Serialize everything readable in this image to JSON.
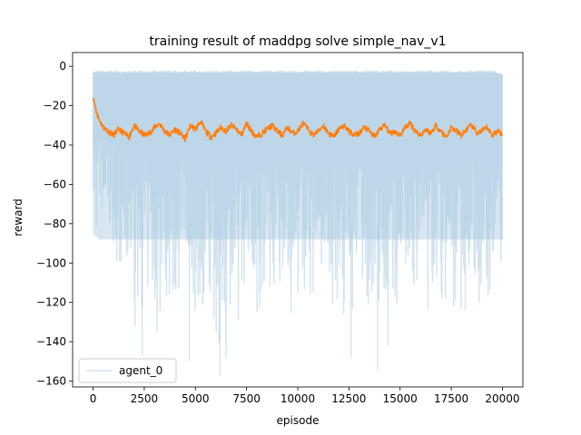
{
  "chart_data": {
    "type": "line",
    "title": "training result of maddpg solve simple_nav_v1",
    "xlabel": "episode",
    "ylabel": "reward",
    "xlim": [
      -1000,
      21000
    ],
    "ylim": [
      -163,
      7
    ],
    "x_ticks": [
      0,
      2500,
      5000,
      7500,
      10000,
      12500,
      15000,
      17500,
      20000
    ],
    "y_ticks": [
      0,
      -20,
      -40,
      -60,
      -80,
      -100,
      -120,
      -140,
      -160
    ],
    "grid": false,
    "legend": {
      "position": "lower-left",
      "entries": [
        "agent_0"
      ]
    },
    "series": [
      {
        "name": "agent_0",
        "style": "raw-episode-reward",
        "color": "#a6c8e0",
        "opacity": 0.5,
        "x_range": [
          0,
          20000
        ],
        "upper_envelope": [
          -2,
          -2,
          -2,
          -2,
          -2,
          -2,
          -2,
          -2,
          -2,
          -2,
          -2,
          -2,
          -2,
          -2,
          -2,
          -2,
          -2,
          -2,
          -2,
          -2,
          -2,
          -2,
          -2,
          -2,
          -2,
          -2,
          -2,
          -2,
          -2,
          -2,
          -2,
          -2,
          -2,
          -2,
          -2,
          -2,
          -2,
          -2,
          -2,
          -2,
          -3
        ],
        "lower_envelope": [
          -90,
          -95,
          -104,
          -112,
          -140,
          -123,
          -147,
          -133,
          -130,
          -113,
          -150,
          -125,
          -143,
          -157,
          -136,
          -122,
          -128,
          -116,
          -120,
          -132,
          -115,
          -130,
          -122,
          -118,
          -145,
          -128,
          -120,
          -138,
          -130,
          -155,
          -126,
          -134,
          -123,
          -132,
          -118,
          -127,
          -135,
          -120,
          -130,
          -125,
          -122
        ],
        "lower_extremes": [
          {
            "x": 2400,
            "y": -147
          },
          {
            "x": 4700,
            "y": -150
          },
          {
            "x": 6200,
            "y": -157
          },
          {
            "x": 12600,
            "y": -148
          },
          {
            "x": 13900,
            "y": -155
          }
        ]
      },
      {
        "name": "",
        "style": "smoothed",
        "color": "#ff7f0e",
        "x_range": [
          0,
          20000
        ],
        "values": [
          -16,
          -26,
          -31,
          -33,
          -35,
          -32,
          -34,
          -36,
          -30,
          -33,
          -35,
          -34,
          -31,
          -29,
          -33,
          -35,
          -32,
          -34,
          -37,
          -30,
          -32,
          -28,
          -33,
          -36,
          -34,
          -31,
          -33,
          -30,
          -32,
          -35,
          -29,
          -33,
          -36,
          -34,
          -32,
          -30,
          -33,
          -35,
          -31,
          -34,
          -33,
          -29,
          -32,
          -35,
          -33,
          -30,
          -34,
          -36,
          -32,
          -30,
          -33,
          -35,
          -34,
          -31,
          -33,
          -36,
          -32,
          -30,
          -34,
          -33,
          -35,
          -31,
          -29,
          -33,
          -35,
          -32,
          -34,
          -30,
          -33,
          -36,
          -31,
          -33,
          -35,
          -32,
          -30,
          -34,
          -33,
          -31,
          -35,
          -33,
          -34
        ]
      }
    ]
  }
}
